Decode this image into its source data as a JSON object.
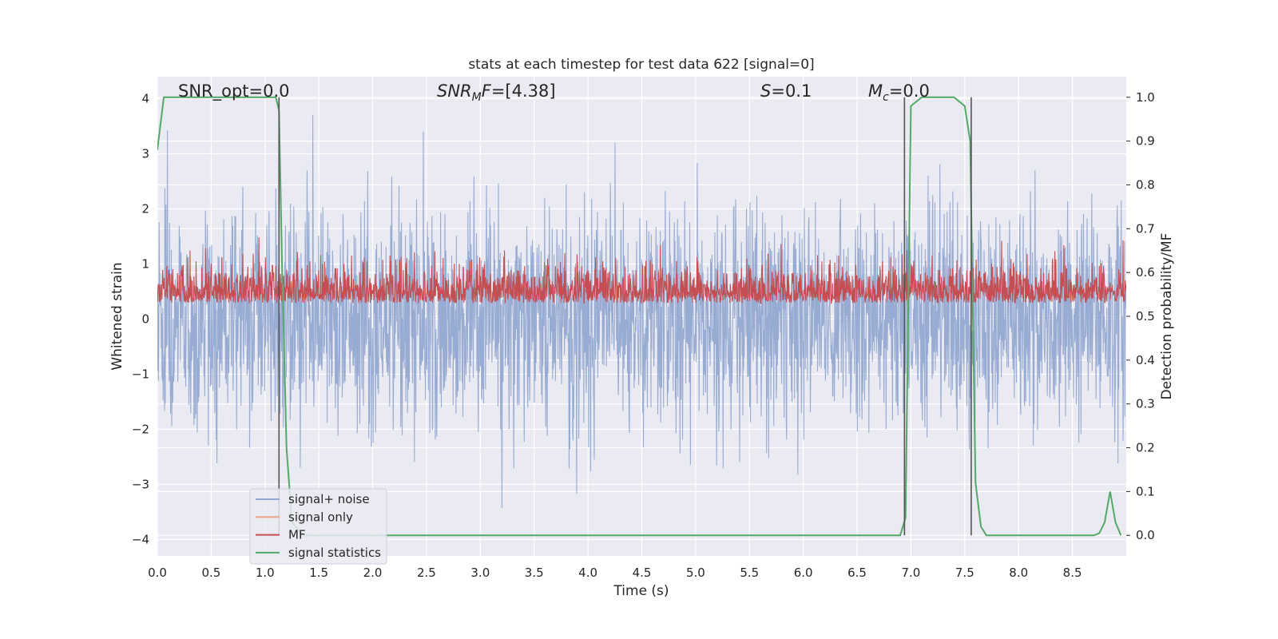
{
  "chart_data": {
    "type": "line",
    "title": "stats at each timestep for test data 622 [signal=0]",
    "xlabel": "Time (s)",
    "ylabel": "Whitened strain",
    "y2label": "Detection probability/MF",
    "xlim": [
      0.0,
      9.0
    ],
    "ylim": [
      -4.3,
      4.4
    ],
    "y2lim": [
      -0.047,
      1.047
    ],
    "xticks": [
      "0.0",
      "0.5",
      "1.0",
      "1.5",
      "2.0",
      "2.5",
      "3.0",
      "3.5",
      "4.0",
      "4.5",
      "5.0",
      "5.5",
      "6.0",
      "6.5",
      "7.0",
      "7.5",
      "8.0",
      "8.5"
    ],
    "yticks": [
      "4",
      "3",
      "2",
      "1",
      "0",
      "−1",
      "−2",
      "−3",
      "−4"
    ],
    "y2ticks": [
      "1.0",
      "0.9",
      "0.8",
      "0.7",
      "0.6",
      "0.5",
      "0.4",
      "0.3",
      "0.2",
      "0.1",
      "0.0"
    ],
    "grid": true,
    "legend_position": "lower-left",
    "annotations": [
      {
        "id": "snr-opt",
        "text": "SNR_opt=0.0"
      },
      {
        "id": "snr-mf",
        "main": "SNR",
        "sub": "M",
        "tail": "F=[4.38]"
      },
      {
        "id": "s",
        "main": "S",
        "tail": "=0.1"
      },
      {
        "id": "mc",
        "main": "M",
        "sub": "c",
        "tail": "=0.0"
      }
    ],
    "series": [
      {
        "name": "signal+ noise",
        "color": "#92a8d1",
        "kind": "noise",
        "std": 1.0,
        "points": 2700
      },
      {
        "name": "signal only",
        "color": "#eaa586",
        "kind": "flat",
        "values": []
      },
      {
        "name": "MF",
        "color": "#c44e52",
        "kind": "noise-positive",
        "mean_y2": 0.55,
        "spread_y2": 0.05,
        "points": 2700
      },
      {
        "name": "signal statistics",
        "color": "#55a868",
        "kind": "line",
        "x": [
          0.0,
          0.06,
          0.1,
          0.5,
          1.0,
          1.1,
          1.13,
          1.16,
          1.2,
          1.25,
          1.35,
          1.5,
          2.0,
          3.0,
          4.0,
          5.0,
          6.0,
          6.9,
          6.95,
          7.0,
          7.1,
          7.4,
          7.5,
          7.55,
          7.6,
          7.65,
          7.7,
          8.0,
          8.5,
          8.7,
          8.75,
          8.8,
          8.85,
          8.9,
          8.95
        ],
        "y": [
          0.88,
          1.0,
          1.0,
          1.0,
          1.0,
          1.0,
          0.97,
          0.6,
          0.2,
          0.03,
          0.0,
          0.0,
          0.0,
          0.0,
          0.0,
          0.0,
          0.0,
          0.0,
          0.04,
          0.98,
          1.0,
          1.0,
          0.98,
          0.9,
          0.12,
          0.02,
          0.0,
          0.0,
          0.0,
          0.0,
          0.005,
          0.03,
          0.1,
          0.03,
          0.0
        ]
      }
    ],
    "vlines": [
      1.13,
      6.94,
      7.56
    ],
    "vline_color": "#555555",
    "background": "#eaeaf2",
    "grid_color": "#ffffff"
  }
}
